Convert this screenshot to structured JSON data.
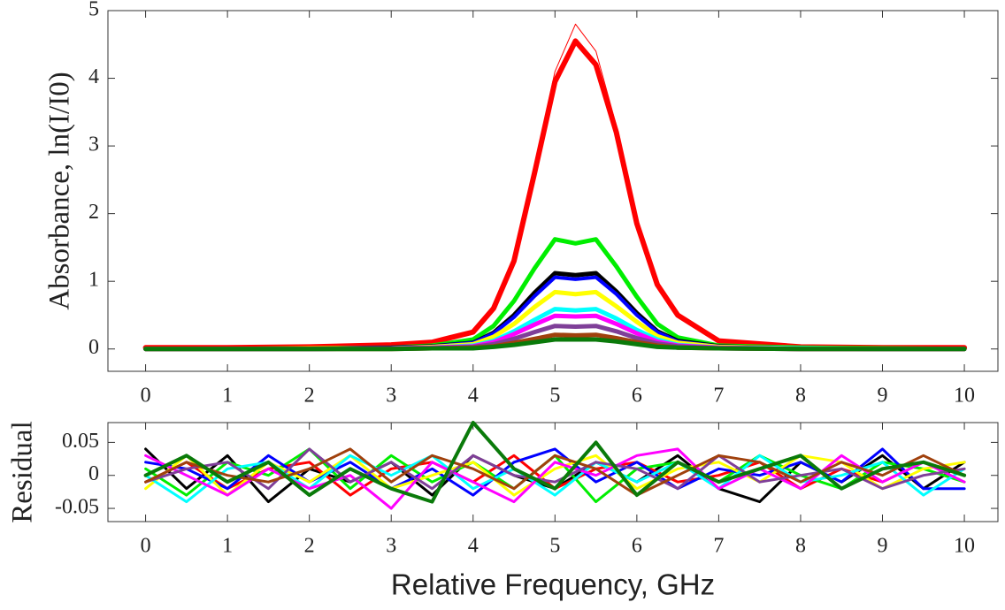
{
  "chart_data": [
    {
      "type": "line",
      "y_label": "Absorbance,  ln(I/I0)",
      "x": [
        0,
        1,
        2,
        3,
        3.5,
        4,
        4.25,
        4.5,
        4.75,
        5,
        5.25,
        5.5,
        5.75,
        6,
        6.25,
        6.5,
        7,
        8,
        9,
        10
      ],
      "xlim": [
        -0.46,
        10.41
      ],
      "xticks": [
        0,
        1,
        2,
        3,
        4,
        5,
        6,
        7,
        8,
        9,
        10
      ],
      "ylim": [
        -0.33,
        5
      ],
      "yticks": [
        0,
        1,
        2,
        3,
        4,
        5
      ],
      "series": [
        {
          "color": "#ff0000",
          "width": 6,
          "values": [
            0.02,
            0.02,
            0.03,
            0.06,
            0.1,
            0.25,
            0.6,
            1.3,
            2.6,
            3.95,
            4.55,
            4.2,
            3.2,
            1.85,
            0.95,
            0.5,
            0.12,
            0.03,
            0.02,
            0.02
          ]
        },
        {
          "color": "#ff0000",
          "width": 1,
          "values": [
            0.02,
            0.02,
            0.03,
            0.06,
            0.1,
            0.26,
            0.62,
            1.35,
            2.7,
            4.1,
            4.8,
            4.4,
            3.3,
            1.95,
            1.0,
            0.52,
            0.12,
            0.03,
            0.02,
            0.02
          ]
        },
        {
          "color": "#00ee00",
          "width": 5,
          "values": [
            0,
            0,
            0.01,
            0.02,
            0.05,
            0.14,
            0.34,
            0.71,
            1.19,
            1.62,
            1.56,
            1.62,
            1.22,
            0.77,
            0.37,
            0.17,
            0.05,
            0.02,
            0.01,
            0
          ]
        },
        {
          "color": "#000000",
          "width": 5,
          "values": [
            0,
            0,
            0.01,
            0.02,
            0.04,
            0.09,
            0.24,
            0.5,
            0.83,
            1.12,
            1.09,
            1.12,
            0.85,
            0.53,
            0.26,
            0.12,
            0.04,
            0.01,
            0,
            0
          ]
        },
        {
          "color": "#0000ff",
          "width": 4,
          "values": [
            0,
            0,
            0.01,
            0.02,
            0.04,
            0.09,
            0.23,
            0.47,
            0.78,
            1.06,
            1.03,
            1.06,
            0.81,
            0.5,
            0.25,
            0.11,
            0.04,
            0.01,
            0,
            0
          ]
        },
        {
          "color": "#ffff00",
          "width": 5,
          "values": [
            0,
            0,
            0.01,
            0.01,
            0.03,
            0.07,
            0.18,
            0.37,
            0.62,
            0.84,
            0.81,
            0.84,
            0.63,
            0.4,
            0.19,
            0.09,
            0.03,
            0.01,
            0,
            0
          ]
        },
        {
          "color": "#00ffff",
          "width": 5,
          "values": [
            0,
            0,
            0,
            0.01,
            0.02,
            0.05,
            0.12,
            0.26,
            0.43,
            0.59,
            0.57,
            0.59,
            0.45,
            0.28,
            0.14,
            0.06,
            0.02,
            0.01,
            0,
            0
          ]
        },
        {
          "color": "#ff00ff",
          "width": 5,
          "values": [
            0,
            0,
            0,
            0.01,
            0.02,
            0.04,
            0.1,
            0.22,
            0.36,
            0.49,
            0.48,
            0.49,
            0.37,
            0.23,
            0.11,
            0.05,
            0.02,
            0,
            0,
            0
          ]
        },
        {
          "color": "#7f3f98",
          "width": 5,
          "values": [
            0,
            0,
            0,
            0.01,
            0.01,
            0.03,
            0.07,
            0.15,
            0.25,
            0.34,
            0.33,
            0.34,
            0.26,
            0.16,
            0.08,
            0.04,
            0.01,
            0,
            0,
            0
          ]
        },
        {
          "color": "#a0410d",
          "width": 5,
          "values": [
            0,
            0,
            0,
            0,
            0.01,
            0.02,
            0.04,
            0.09,
            0.15,
            0.21,
            0.2,
            0.21,
            0.16,
            0.1,
            0.05,
            0.02,
            0.01,
            0,
            0,
            0
          ]
        },
        {
          "color": "#0a7a0a",
          "width": 5,
          "values": [
            0,
            0,
            0,
            0,
            0.01,
            0.01,
            0.03,
            0.06,
            0.1,
            0.14,
            0.14,
            0.14,
            0.11,
            0.07,
            0.03,
            0.02,
            0.01,
            0,
            0,
            0
          ]
        }
      ]
    },
    {
      "type": "line",
      "y_label": "Residual",
      "x_label": "Relative Frequency, GHz",
      "x": [
        0,
        0.5,
        1,
        1.5,
        2,
        2.5,
        3,
        3.5,
        4,
        4.5,
        5,
        5.5,
        6,
        6.5,
        7,
        7.5,
        8,
        8.5,
        9,
        9.5,
        10
      ],
      "xlim": [
        -0.46,
        10.41
      ],
      "xticks": [
        0,
        1,
        2,
        3,
        4,
        5,
        6,
        7,
        8,
        9,
        10
      ],
      "ylim": [
        -0.07,
        0.08
      ],
      "yticks": [
        -0.05,
        0,
        0.05
      ],
      "series": [
        {
          "color": "#000000",
          "width": 3,
          "values": [
            0.04,
            -0.02,
            0.03,
            -0.04,
            0.01,
            -0.01,
            0.02,
            -0.03,
            0.03,
            0.0,
            -0.02,
            0.02,
            -0.01,
            0.03,
            -0.02,
            -0.04,
            0.02,
            -0.01,
            0.03,
            -0.02,
            0.02
          ]
        },
        {
          "color": "#ff0000",
          "width": 3,
          "values": [
            -0.01,
            0.02,
            -0.02,
            0.01,
            0.02,
            -0.03,
            0.01,
            0.02,
            -0.01,
            0.03,
            -0.02,
            0.01,
            0.02,
            -0.01,
            0.0,
            0.02,
            -0.02,
            0.01,
            -0.01,
            0.02,
            0.0
          ]
        },
        {
          "color": "#00ee00",
          "width": 3,
          "values": [
            0.01,
            -0.03,
            0.02,
            0.0,
            0.04,
            -0.02,
            0.03,
            -0.01,
            0.02,
            -0.02,
            0.03,
            -0.04,
            0.01,
            0.02,
            -0.01,
            0.03,
            0.0,
            -0.02,
            0.02,
            0.01,
            -0.01
          ]
        },
        {
          "color": "#0000ff",
          "width": 3,
          "values": [
            0.02,
            0.01,
            -0.02,
            0.03,
            -0.01,
            0.02,
            -0.02,
            0.01,
            -0.03,
            0.02,
            0.04,
            -0.01,
            0.02,
            -0.02,
            0.01,
            0.0,
            0.02,
            -0.01,
            0.04,
            -0.02,
            -0.02
          ]
        },
        {
          "color": "#ffff00",
          "width": 3,
          "values": [
            -0.02,
            0.03,
            -0.03,
            0.02,
            -0.01,
            0.03,
            -0.02,
            0.0,
            0.02,
            -0.03,
            0.01,
            0.03,
            -0.02,
            0.01,
            0.02,
            -0.01,
            0.03,
            0.02,
            -0.02,
            0.01,
            0.02
          ]
        },
        {
          "color": "#00ffff",
          "width": 3,
          "values": [
            0.0,
            -0.04,
            0.01,
            0.02,
            -0.02,
            0.03,
            0.0,
            0.03,
            -0.02,
            0.01,
            -0.03,
            0.02,
            -0.01,
            0.02,
            -0.02,
            0.03,
            -0.01,
            0.0,
            0.02,
            -0.03,
            0.01
          ]
        },
        {
          "color": "#ff00ff",
          "width": 3,
          "values": [
            0.03,
            0.0,
            -0.03,
            0.01,
            -0.02,
            0.0,
            -0.05,
            0.02,
            -0.01,
            -0.04,
            0.02,
            0.0,
            0.03,
            0.04,
            -0.02,
            0.01,
            -0.02,
            0.03,
            -0.01,
            0.02,
            -0.01
          ]
        },
        {
          "color": "#7f3f98",
          "width": 3,
          "values": [
            -0.01,
            0.01,
            0.02,
            -0.02,
            0.04,
            -0.01,
            0.02,
            -0.02,
            0.03,
            0.0,
            -0.01,
            0.02,
            0.01,
            -0.02,
            0.03,
            -0.01,
            0.0,
            0.01,
            -0.02,
            0.0,
            0.01
          ]
        },
        {
          "color": "#a0410d",
          "width": 3,
          "values": [
            -0.01,
            0.02,
            0.0,
            -0.01,
            0.01,
            0.04,
            -0.01,
            0.03,
            0.01,
            -0.02,
            0.03,
            0.01,
            -0.03,
            0.0,
            0.03,
            0.02,
            -0.01,
            0.02,
            0.0,
            0.03,
            0.0
          ]
        },
        {
          "color": "#0a7a0a",
          "width": 4,
          "values": [
            0.0,
            0.03,
            -0.01,
            0.02,
            -0.03,
            0.01,
            -0.02,
            -0.04,
            0.08,
            0.01,
            -0.02,
            0.05,
            -0.03,
            0.02,
            -0.01,
            0.01,
            0.03,
            -0.02,
            0.01,
            0.02,
            0.0
          ]
        }
      ]
    }
  ]
}
